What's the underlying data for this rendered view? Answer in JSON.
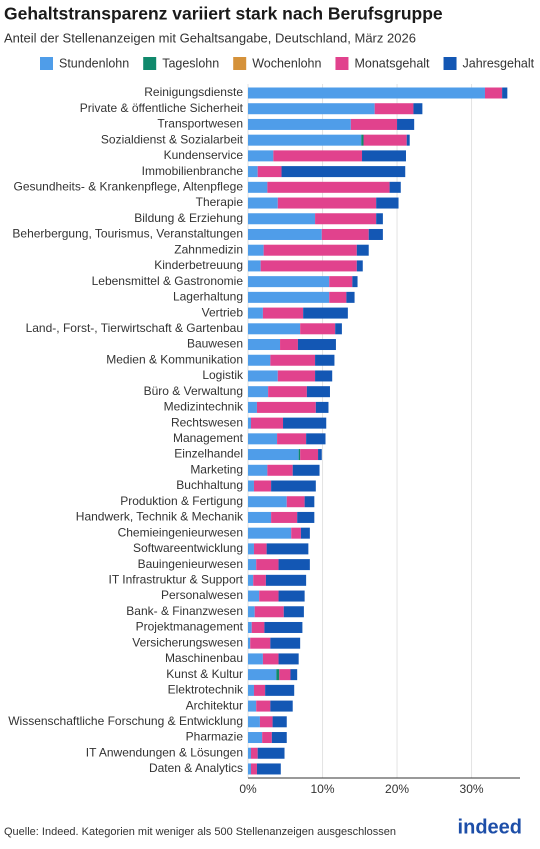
{
  "chart_data": {
    "type": "stacked-bar-horizontal",
    "title": "Gehaltstransparenz variiert stark nach Berufsgruppe",
    "subtitle": "Anteil der Stellenanzeigen mit Gehaltsangabe, Deutschland, März 2026",
    "source": "Quelle: Indeed. Kategorien mit weniger als 500 Stellenanzeigen ausgeschlossen",
    "logo": "indeed",
    "legend": "top",
    "grid": true,
    "categories": [
      "Reinigungsdienste",
      "Private & öffentliche Sicherheit",
      "Transportwesen",
      "Sozialdienst & Sozialarbeit",
      "Kundenservice",
      "Immobilienbranche",
      "Gesundheits- & Krankenpflege, Altenpflege",
      "Therapie",
      "Bildung & Erziehung",
      "Beherbergung, Tourismus, Veranstaltungen",
      "Zahnmedizin",
      "Kinderbetreuung",
      "Lebensmittel & Gastronomie",
      "Lagerhaltung",
      "Vertrieb",
      "Land-, Forst-, Tierwirtschaft & Gartenbau",
      "Bauwesen",
      "Medien & Kommunikation",
      "Logistik",
      "Büro & Verwaltung",
      "Medizintechnik",
      "Rechtswesen",
      "Management",
      "Einzelhandel",
      "Marketing",
      "Buchhaltung",
      "Produktion & Fertigung",
      "Handwerk, Technik & Mechanik",
      "Chemieingenieurwesen",
      "Softwareentwicklung",
      "Bauingenieurwesen",
      "IT Infrastruktur & Support",
      "Personalwesen",
      "Bank- & Finanzwesen",
      "Projektmanagement",
      "Versicherungswesen",
      "Maschinenbau",
      "Kunst & Kultur",
      "Elektrotechnik",
      "Architektur",
      "Wissenschaftliche Forschung & Entwicklung",
      "Pharmazie",
      "IT Anwendungen & Lösungen",
      "Daten & Analytics"
    ],
    "series": [
      {
        "name": "Stundenlohn",
        "color": "#4f9de9",
        "values": [
          31.8,
          17.0,
          13.8,
          15.2,
          3.4,
          1.3,
          2.6,
          4.0,
          9.0,
          9.9,
          2.1,
          1.7,
          10.9,
          10.9,
          2.0,
          7.0,
          4.3,
          3.0,
          4.0,
          2.7,
          1.2,
          0.4,
          3.9,
          6.8,
          2.6,
          0.8,
          5.2,
          3.1,
          5.8,
          0.8,
          1.1,
          0.7,
          1.5,
          0.9,
          0.5,
          0.3,
          2.0,
          3.8,
          0.8,
          1.1,
          1.6,
          1.9,
          0.4,
          0.4
        ]
      },
      {
        "name": "Tageslohn",
        "color": "#10896c",
        "values": [
          0,
          0,
          0,
          0.3,
          0,
          0,
          0,
          0,
          0,
          0,
          0,
          0,
          0,
          0,
          0,
          0,
          0,
          0,
          0,
          0,
          0,
          0,
          0,
          0.2,
          0,
          0,
          0,
          0,
          0,
          0,
          0,
          0,
          0,
          0,
          0,
          0,
          0,
          0.4,
          0,
          0,
          0,
          0,
          0,
          0
        ]
      },
      {
        "name": "Wochenlohn",
        "color": "#d5923a",
        "values": [
          0,
          0,
          0,
          0,
          0,
          0,
          0,
          0,
          0,
          0,
          0,
          0,
          0,
          0,
          0,
          0,
          0,
          0,
          0,
          0,
          0,
          0,
          0,
          0,
          0,
          0,
          0,
          0,
          0,
          0,
          0,
          0,
          0,
          0,
          0,
          0,
          0,
          0,
          0,
          0,
          0,
          0,
          0,
          0
        ]
      },
      {
        "name": "Monatsgehalt",
        "color": "#e1428d",
        "values": [
          2.3,
          5.2,
          6.2,
          5.8,
          11.9,
          3.2,
          16.4,
          13.2,
          8.2,
          6.3,
          12.5,
          12.9,
          3.1,
          2.3,
          5.4,
          4.7,
          2.4,
          6.0,
          5.0,
          5.2,
          7.9,
          4.3,
          3.9,
          2.4,
          3.4,
          2.3,
          2.4,
          3.5,
          1.3,
          1.7,
          3.0,
          1.7,
          2.6,
          3.9,
          1.7,
          2.7,
          2.1,
          1.5,
          1.5,
          1.9,
          1.7,
          1.3,
          0.9,
          0.8
        ]
      },
      {
        "name": "Jahresgehalt",
        "color": "#1357b4",
        "values": [
          0.7,
          1.2,
          2.3,
          0.4,
          5.9,
          16.6,
          1.5,
          3.0,
          0.9,
          1.9,
          1.6,
          0.8,
          0.7,
          1.1,
          6.0,
          0.9,
          5.1,
          2.6,
          2.3,
          3.1,
          1.7,
          5.8,
          2.6,
          0.5,
          3.6,
          6.0,
          1.3,
          2.3,
          1.2,
          5.6,
          4.2,
          5.4,
          3.5,
          2.7,
          5.1,
          4.0,
          2.7,
          0.9,
          3.9,
          3.0,
          1.9,
          2.0,
          3.6,
          3.2
        ]
      }
    ],
    "xlim": [
      0,
      36.5
    ],
    "xticks": [
      {
        "value": 0,
        "label": "0%"
      },
      {
        "value": 10,
        "label": "10%"
      },
      {
        "value": 20,
        "label": "20%"
      },
      {
        "value": 30,
        "label": "30%"
      }
    ]
  }
}
